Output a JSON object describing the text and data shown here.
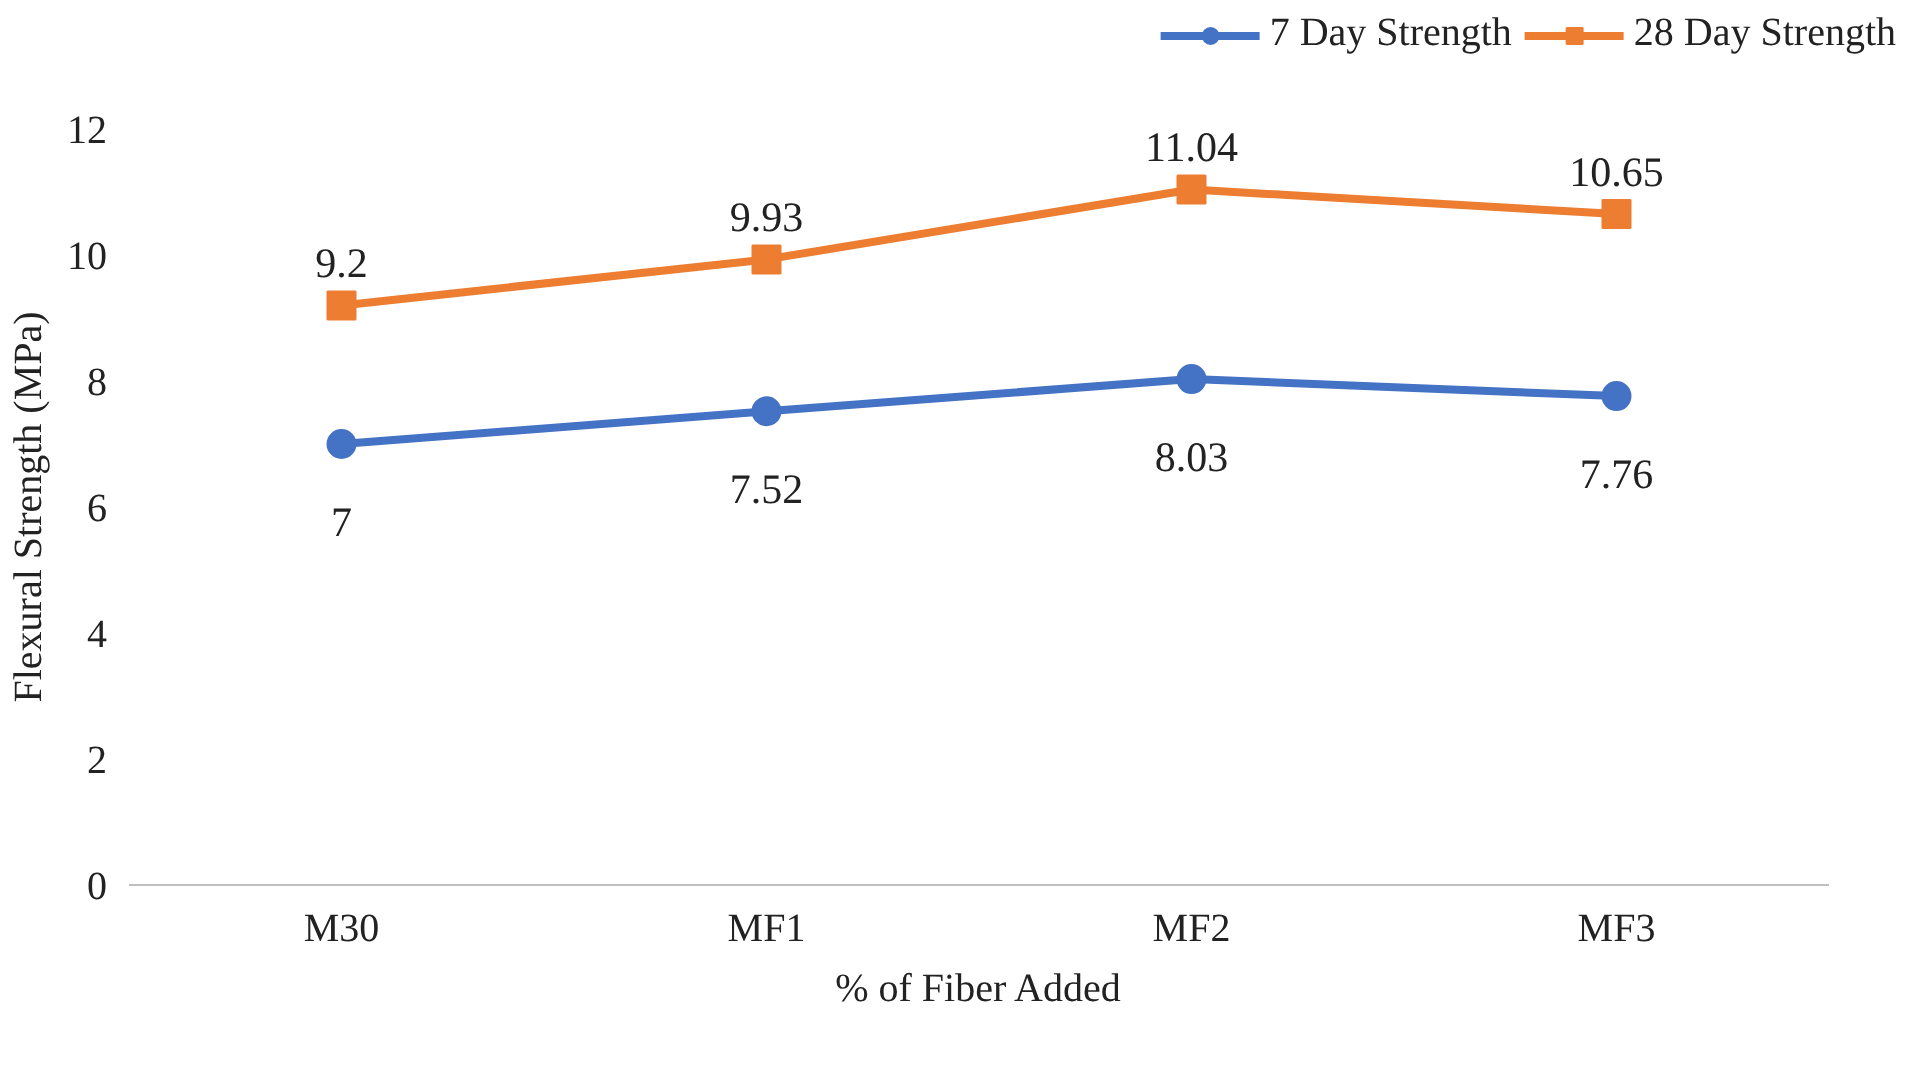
{
  "chart_data": {
    "type": "line",
    "xlabel": "% of Fiber Added",
    "ylabel": "Flexural Strength (MPa)",
    "categories": [
      "M30",
      "MF1",
      "MF2",
      "MF3"
    ],
    "series": [
      {
        "name": "7 Day Strength",
        "color": "#4472c4",
        "values": [
          7,
          7.52,
          8.03,
          7.76
        ],
        "marker": "circle"
      },
      {
        "name": "28 Day Strength",
        "color": "#ed7d31",
        "values": [
          9.2,
          9.93,
          11.04,
          10.65
        ],
        "marker": "square"
      }
    ],
    "ylim": [
      0,
      12
    ],
    "yticks": [
      0,
      2,
      4,
      6,
      8,
      10,
      12
    ],
    "grid": false,
    "legend": "top right",
    "data_labels": true,
    "line_style": "solid"
  }
}
